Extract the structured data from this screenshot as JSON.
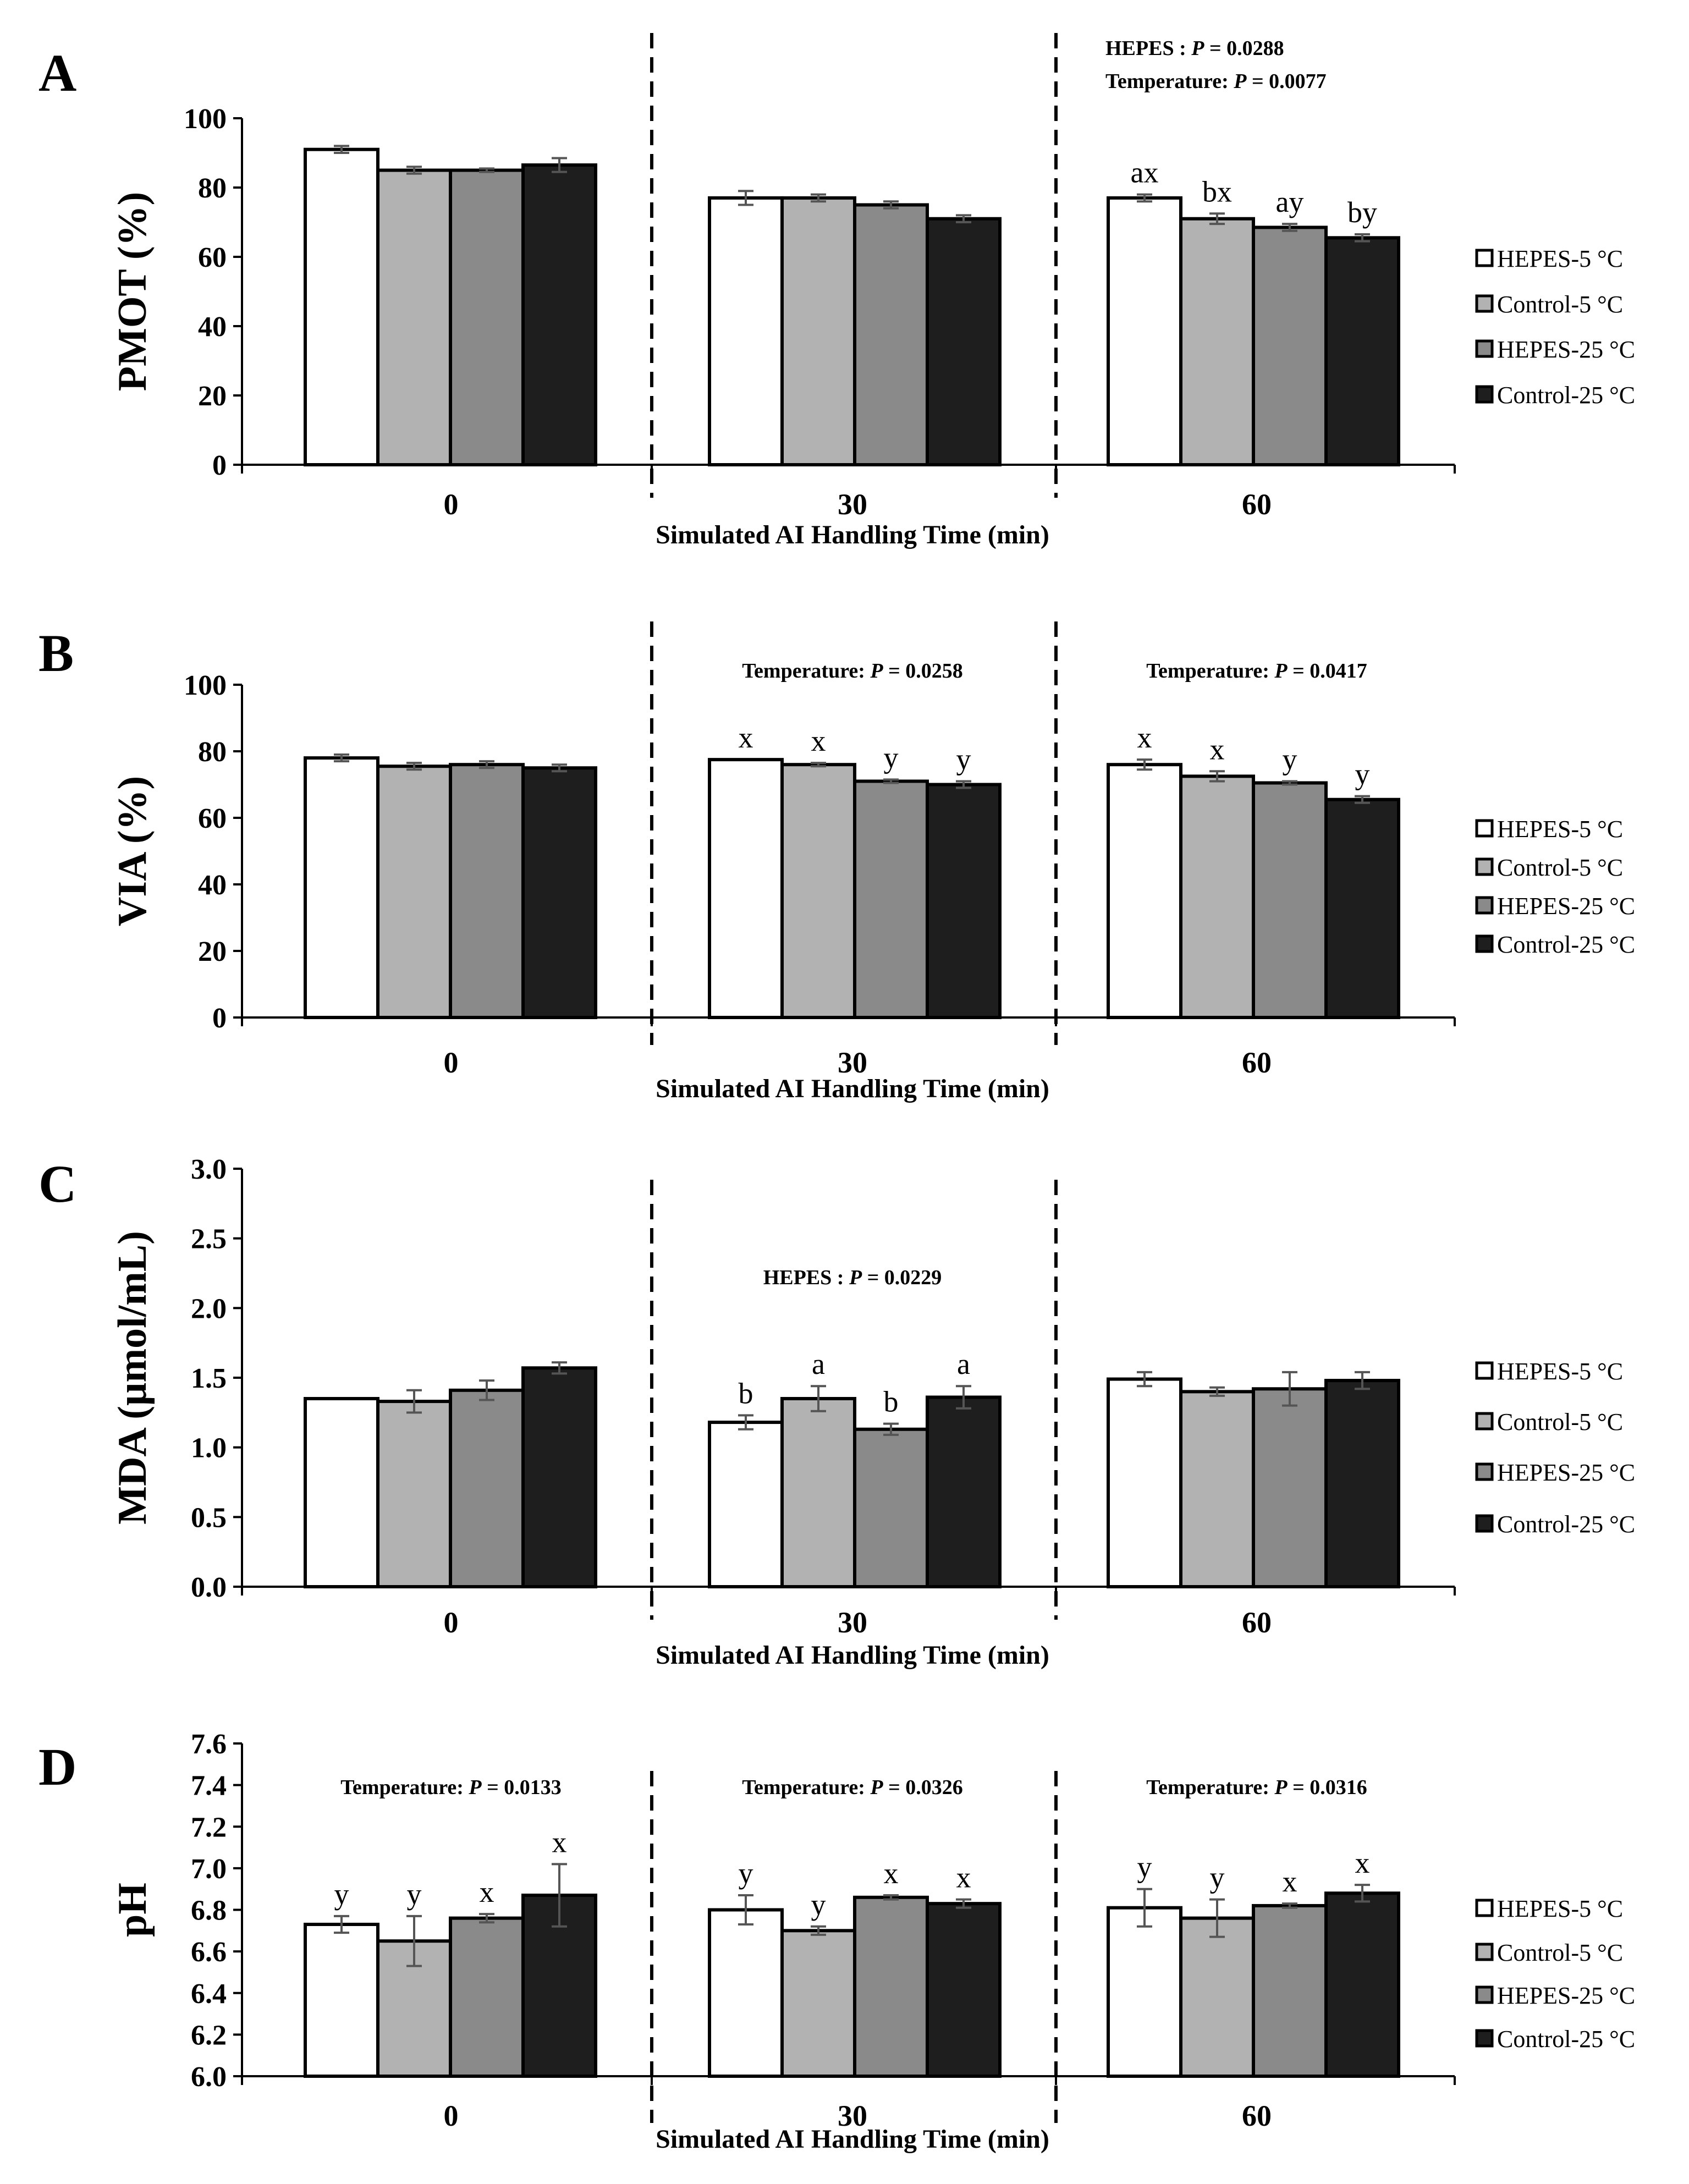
{
  "colors": {
    "HEPES-5 °C": "#ffffff",
    "Control-5 °C": "#b2b2b2",
    "HEPES-25 °C": "#8a8a8a",
    "Control-25 °C": "#1e1e1e",
    "outline": "#000000",
    "error_bar": "#555555"
  },
  "chart_data": [
    {
      "type": "bar",
      "panel": "A",
      "ylabel": "PMOT (%)",
      "xlabel": "Simulated AI Handling Time (min)",
      "categories": [
        "0",
        "30",
        "60"
      ],
      "ylim": [
        0,
        100
      ],
      "yticks": [
        "0",
        "20",
        "40",
        "60",
        "80",
        "100"
      ],
      "legend": [
        "HEPES-5 °C",
        "Control-5 °C",
        "HEPES-25 °C",
        "Control-25 °C"
      ],
      "series": [
        {
          "name": "HEPES-5 °C",
          "values": [
            91,
            77,
            77
          ],
          "errors": [
            1,
            2,
            1
          ]
        },
        {
          "name": "Control-5 °C",
          "values": [
            85,
            77,
            71
          ],
          "errors": [
            1,
            1,
            1.5
          ]
        },
        {
          "name": "HEPES-25 °C",
          "values": [
            85,
            75,
            68.5
          ],
          "errors": [
            0.5,
            1,
            1
          ]
        },
        {
          "name": "Control-25 °C",
          "values": [
            86.5,
            71,
            65.5
          ],
          "errors": [
            2,
            1,
            1
          ]
        }
      ],
      "letters": [
        [
          "",
          "",
          "",
          ""
        ],
        [
          "",
          "",
          "",
          ""
        ],
        [
          "ax",
          "bx",
          "ay",
          "by"
        ]
      ],
      "stats": [
        {
          "line1_label": "HEPES : ",
          "line1_p": "P",
          "line1_value": " = 0.0288",
          "line2_label": "Temperature: ",
          "line2_p": "P",
          "line2_value": " = 0.0077",
          "group": 2
        }
      ]
    },
    {
      "type": "bar",
      "panel": "B",
      "ylabel": "VIA (%)",
      "xlabel": "Simulated AI Handling Time (min)",
      "categories": [
        "0",
        "30",
        "60"
      ],
      "ylim": [
        0,
        100
      ],
      "yticks": [
        "0",
        "20",
        "40",
        "60",
        "80",
        "100"
      ],
      "legend": [
        "HEPES-5 °C",
        "Control-5 °C",
        "HEPES-25 °C",
        "Control-25 °C"
      ],
      "series": [
        {
          "name": "HEPES-5 °C",
          "values": [
            78,
            77.5,
            76
          ],
          "errors": [
            1,
            0,
            1.5
          ]
        },
        {
          "name": "Control-5 °C",
          "values": [
            75.5,
            76,
            72.5
          ],
          "errors": [
            1,
            0.5,
            1.5
          ]
        },
        {
          "name": "HEPES-25 °C",
          "values": [
            76,
            71,
            70.5
          ],
          "errors": [
            1,
            0.5,
            0.5
          ]
        },
        {
          "name": "Control-25 °C",
          "values": [
            75,
            70,
            65.5
          ],
          "errors": [
            1,
            1,
            1
          ]
        }
      ],
      "letters": [
        [
          "",
          "",
          "",
          ""
        ],
        [
          "x",
          "x",
          "y",
          "y"
        ],
        [
          "x",
          "x",
          "y",
          "y"
        ]
      ],
      "stats": [
        {
          "line1_label": "Temperature: ",
          "line1_p": "P",
          "line1_value": " = 0.0258",
          "group": 1
        },
        {
          "line1_label": "Temperature: ",
          "line1_p": "P",
          "line1_value": " = 0.0417",
          "group": 2
        }
      ]
    },
    {
      "type": "bar",
      "panel": "C",
      "ylabel": "MDA (µmol/mL)",
      "xlabel": "Simulated AI Handling Time (min)",
      "categories": [
        "0",
        "30",
        "60"
      ],
      "ylim": [
        0,
        3
      ],
      "yticks": [
        "0.0",
        "0.5",
        "1.0",
        "1.5",
        "2.0",
        "2.5",
        "3.0"
      ],
      "legend": [
        "HEPES-5 °C",
        "Control-5 °C",
        "HEPES-25 °C",
        "Control-25 °C"
      ],
      "series": [
        {
          "name": "HEPES-5 °C",
          "values": [
            1.35,
            1.18,
            1.49
          ],
          "errors": [
            0,
            0.05,
            0.05
          ]
        },
        {
          "name": "Control-5 °C",
          "values": [
            1.33,
            1.35,
            1.4
          ],
          "errors": [
            0.08,
            0.09,
            0.03
          ]
        },
        {
          "name": "HEPES-25 °C",
          "values": [
            1.41,
            1.13,
            1.42
          ],
          "errors": [
            0.07,
            0.04,
            0.12
          ]
        },
        {
          "name": "Control-25 °C",
          "values": [
            1.57,
            1.36,
            1.48
          ],
          "errors": [
            0.04,
            0.08,
            0.06
          ]
        }
      ],
      "letters": [
        [
          "",
          "",
          "",
          ""
        ],
        [
          "b",
          "a",
          "b",
          "a"
        ],
        [
          "",
          "",
          "",
          ""
        ]
      ],
      "stats": [
        {
          "line1_label": "HEPES : ",
          "line1_p": "P",
          "line1_value": " = 0.0229",
          "group": 1
        }
      ]
    },
    {
      "type": "bar",
      "panel": "D",
      "ylabel": "pH",
      "xlabel": "Simulated AI Handling Time (min)",
      "categories": [
        "0",
        "30",
        "60"
      ],
      "ylim": [
        6.0,
        7.6
      ],
      "yticks": [
        "6.0",
        "6.2",
        "6.4",
        "6.6",
        "6.8",
        "7.0",
        "7.2",
        "7.4",
        "7.6"
      ],
      "legend": [
        "HEPES-5 °C",
        "Control-5 °C",
        "HEPES-25 °C",
        "Control-25 °C"
      ],
      "series": [
        {
          "name": "HEPES-5 °C",
          "values": [
            6.73,
            6.8,
            6.81
          ],
          "errors": [
            0.04,
            0.07,
            0.09
          ]
        },
        {
          "name": "Control-5 °C",
          "values": [
            6.65,
            6.7,
            6.76
          ],
          "errors": [
            0.12,
            0.02,
            0.09
          ]
        },
        {
          "name": "HEPES-25 °C",
          "values": [
            6.76,
            6.86,
            6.82
          ],
          "errors": [
            0.02,
            0.01,
            0.01
          ]
        },
        {
          "name": "Control-25 °C",
          "values": [
            6.87,
            6.83,
            6.88
          ],
          "errors": [
            0.15,
            0.02,
            0.04
          ]
        }
      ],
      "letters": [
        [
          "y",
          "y",
          "x",
          "x"
        ],
        [
          "y",
          "y",
          "x",
          "x"
        ],
        [
          "y",
          "y",
          "x",
          "x"
        ]
      ],
      "stats": [
        {
          "line1_label": "Temperature: ",
          "line1_p": "P",
          "line1_value": " = 0.0133",
          "group": 0
        },
        {
          "line1_label": "Temperature: ",
          "line1_p": "P",
          "line1_value": " = 0.0326",
          "group": 1
        },
        {
          "line1_label": "Temperature: ",
          "line1_p": "P",
          "line1_value": " = 0.0316",
          "group": 2
        }
      ]
    }
  ]
}
